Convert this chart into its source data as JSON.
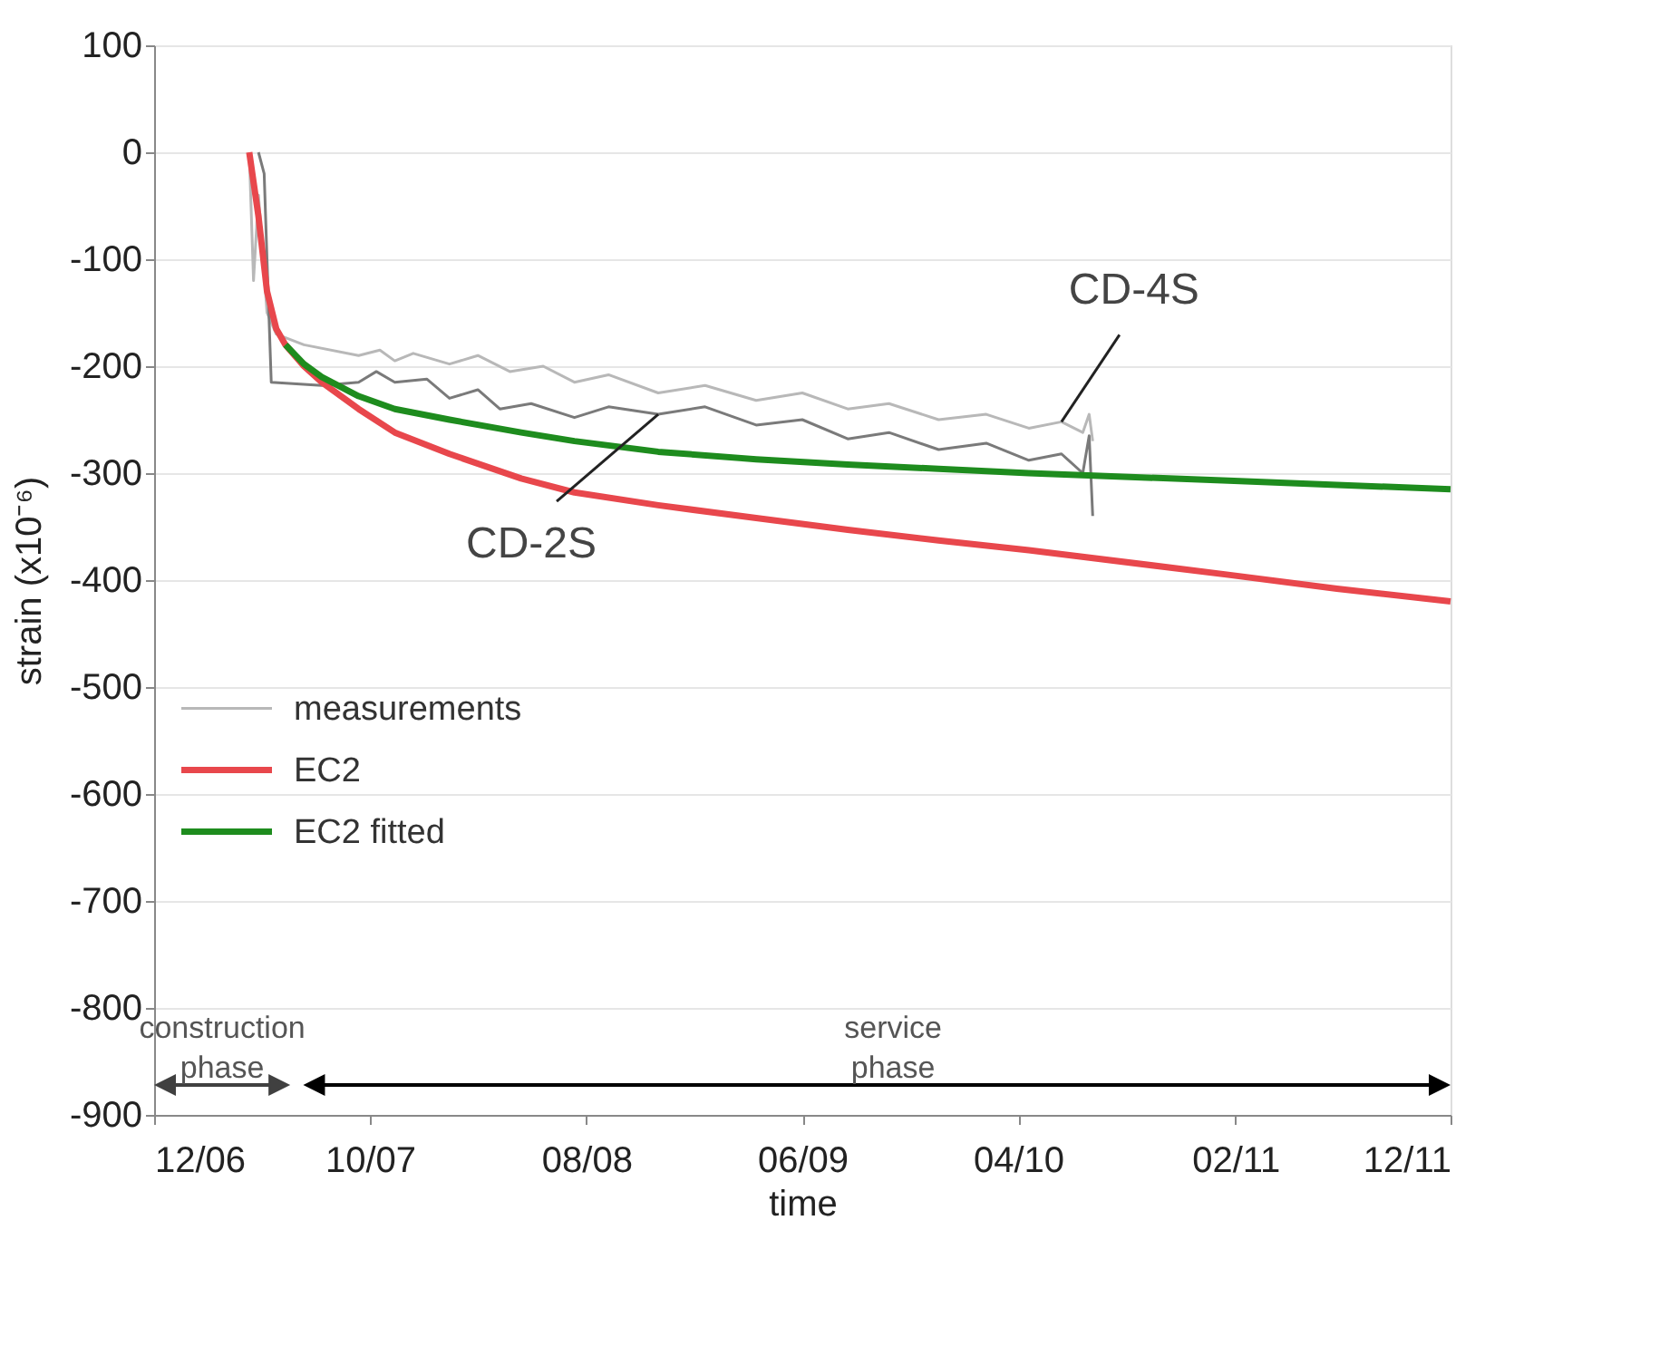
{
  "chart_data": {
    "type": "line",
    "xlabel": "time",
    "ylabel": "strain (x10⁻⁶)",
    "xlim": [
      "2006-12",
      "2011-12"
    ],
    "xticks": [
      {
        "value": "2006-12",
        "label": "12/06"
      },
      {
        "value": "2007-10",
        "label": "10/07"
      },
      {
        "value": "2008-08",
        "label": "08/08"
      },
      {
        "value": "2009-06",
        "label": "06/09"
      },
      {
        "value": "2010-04",
        "label": "04/10"
      },
      {
        "value": "2011-02",
        "label": "02/11"
      },
      {
        "value": "2011-12",
        "label": "12/11"
      }
    ],
    "ylim": [
      -900,
      100
    ],
    "yticks": [
      -900,
      -800,
      -700,
      -600,
      -500,
      -400,
      -300,
      -200,
      -100,
      0,
      100
    ],
    "grid": "y",
    "legend": "bottom left",
    "line_style": "solid",
    "marker": "none",
    "series": [
      {
        "name": "measurements",
        "color": "#b8b8b8",
        "x": [
          "2007-04-14",
          "2007-04-20",
          "2007-04-27",
          "2007-05-09",
          "2007-05-22",
          "2007-06-30",
          "2007-09-15",
          "2007-10-15",
          "2007-11-05",
          "2007-12-01",
          "2008-01-21",
          "2008-03-01",
          "2008-04-15",
          "2008-06-01",
          "2008-07-15",
          "2008-09-01",
          "2008-11-10",
          "2009-01-15",
          "2009-03-28",
          "2009-06-01",
          "2009-08-04",
          "2009-10-01",
          "2009-12-10",
          "2010-02-15",
          "2010-04-16",
          "2010-06-01",
          "2010-07-01",
          "2010-07-10",
          "2010-07-15"
        ],
        "values": [
          0,
          -120,
          -40,
          -150,
          -170,
          -180,
          -190,
          -185,
          -195,
          -188,
          -198,
          -190,
          -205,
          -200,
          -215,
          -208,
          -225,
          -218,
          -232,
          -225,
          -240,
          -235,
          -250,
          -245,
          -258,
          -252,
          -262,
          -245,
          -270
        ]
      },
      {
        "color": "#7a7a7a",
        "x": [
          "2007-04-27",
          "2007-05-05",
          "2007-05-09",
          "2007-05-15",
          "2007-07-25",
          "2007-09-15",
          "2007-10-10",
          "2007-11-05",
          "2007-12-20",
          "2008-01-21",
          "2008-03-01",
          "2008-04-01",
          "2008-05-15",
          "2008-07-15",
          "2008-09-01",
          "2008-11-10",
          "2009-01-15",
          "2009-03-28",
          "2009-06-01",
          "2009-08-04",
          "2009-10-01",
          "2009-12-10",
          "2010-02-15",
          "2010-04-16",
          "2010-06-01",
          "2010-07-01",
          "2010-07-10",
          "2010-07-15"
        ],
        "values": [
          0,
          -20,
          -100,
          -215,
          -218,
          -215,
          -205,
          -215,
          -212,
          -230,
          -222,
          -240,
          -235,
          -248,
          -238,
          -245,
          -238,
          -255,
          -250,
          -268,
          -262,
          -278,
          -272,
          -288,
          -282,
          -300,
          -265,
          -340
        ]
      },
      {
        "name": "EC2",
        "color": "#e8474c",
        "x": [
          "2007-04-14",
          "2007-04-27",
          "2007-05-09",
          "2007-05-22",
          "2007-06-04",
          "2007-06-30",
          "2007-07-25",
          "2007-09-15",
          "2007-11-05",
          "2008-01-21",
          "2008-05-01",
          "2008-07-15",
          "2008-11-10",
          "2009-03-28",
          "2009-08-04",
          "2009-12-10",
          "2010-04-16",
          "2011-01-22",
          "2011-06-24",
          "2011-12-01"
        ],
        "values": [
          0,
          -60,
          -130,
          -165,
          -180,
          -200,
          -215,
          -240,
          -262,
          -282,
          -305,
          -318,
          -330,
          -342,
          -353,
          -363,
          -372,
          -395,
          -408,
          -420
        ]
      },
      {
        "name": "EC2 fitted",
        "color": "#1e8c1e",
        "x": [
          "2007-06-04",
          "2007-06-30",
          "2007-07-25",
          "2007-09-15",
          "2007-11-05",
          "2008-01-21",
          "2008-05-01",
          "2008-07-15",
          "2008-11-10",
          "2009-03-28",
          "2009-08-04",
          "2009-12-10",
          "2010-04-16",
          "2011-01-22",
          "2011-06-24",
          "2011-12-01"
        ],
        "values": [
          -180,
          -198,
          -210,
          -228,
          -240,
          -250,
          -262,
          -270,
          -280,
          -287,
          -292,
          -296,
          -300,
          -307,
          -311,
          -315
        ]
      }
    ],
    "annotations": [
      {
        "text": "CD-2S",
        "x": "2008-11-10",
        "y": -245
      },
      {
        "text": "CD-4S",
        "x": "2010-06-01",
        "y": -252
      },
      "construction phase",
      "service phase"
    ]
  }
}
